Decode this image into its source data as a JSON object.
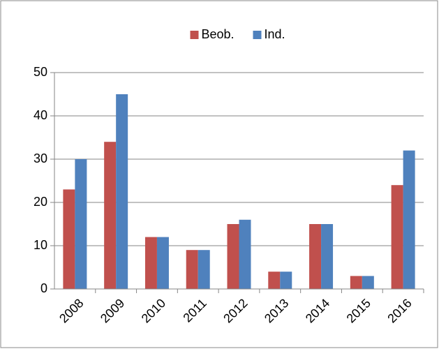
{
  "chart_data": {
    "type": "bar",
    "categories": [
      "2008",
      "2009",
      "2010",
      "2011",
      "2012",
      "2013",
      "2014",
      "2015",
      "2016"
    ],
    "series": [
      {
        "name": "Beob.",
        "color": "#c0504d",
        "values": [
          23,
          34,
          12,
          9,
          15,
          4,
          15,
          3,
          24
        ]
      },
      {
        "name": "Ind.",
        "color": "#4f81bd",
        "values": [
          30,
          45,
          12,
          9,
          16,
          4,
          15,
          3,
          32
        ]
      }
    ],
    "ylim": [
      0,
      50
    ],
    "yticks": [
      0,
      10,
      20,
      30,
      40,
      50
    ],
    "grid": true,
    "legend": "top"
  }
}
